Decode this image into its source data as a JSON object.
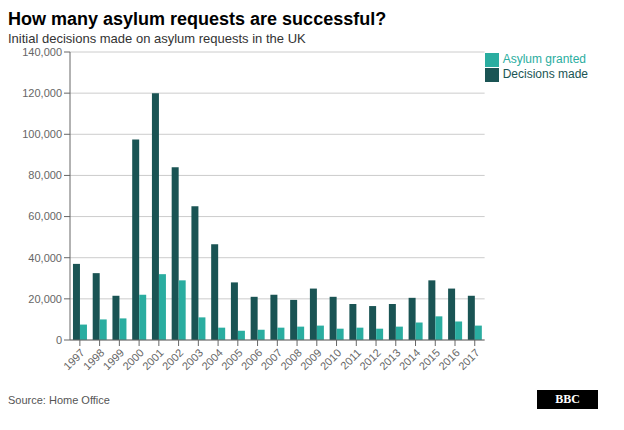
{
  "chart_data": {
    "type": "bar",
    "title": "How many asylum requests are successful?",
    "subtitle": "Initial decisions made on asylum requests in the UK",
    "source": "Source: Home Office",
    "annotations": [
      "BBC"
    ],
    "categories": [
      "1997",
      "1998",
      "1999",
      "2000",
      "2001",
      "2002",
      "2003",
      "2004",
      "2005",
      "2006",
      "2007",
      "2008",
      "2009",
      "2010",
      "2011",
      "2012",
      "2013",
      "2014",
      "2015",
      "2016",
      "2017"
    ],
    "series": [
      {
        "name": "Decisions made",
        "color": "#1a5454",
        "values": [
          37000,
          32500,
          21500,
          97500,
          120000,
          84000,
          65000,
          46500,
          28000,
          21000,
          22000,
          19500,
          25000,
          21000,
          17500,
          16500,
          17500,
          20500,
          29000,
          25000,
          21500
        ]
      },
      {
        "name": "Asylum granted",
        "color": "#2aada0",
        "values": [
          7500,
          10000,
          10500,
          22000,
          32000,
          29000,
          11000,
          6000,
          4500,
          5000,
          6000,
          6500,
          7000,
          5500,
          6000,
          5500,
          6500,
          8500,
          11500,
          9000,
          7000
        ]
      }
    ],
    "ylim": [
      0,
      140000
    ],
    "yticks": [
      0,
      {
        "value": 20000,
        "label": "20,000"
      },
      {
        "value": 40000,
        "label": "40,000"
      },
      {
        "value": 60000,
        "label": "60,000"
      },
      {
        "value": 80000,
        "label": "80,000"
      },
      {
        "value": 100000,
        "label": "100,000"
      },
      {
        "value": 120000,
        "label": "120,000"
      },
      {
        "value": 140000,
        "label": "140,000"
      }
    ],
    "grid": true,
    "legend": "upper right"
  }
}
